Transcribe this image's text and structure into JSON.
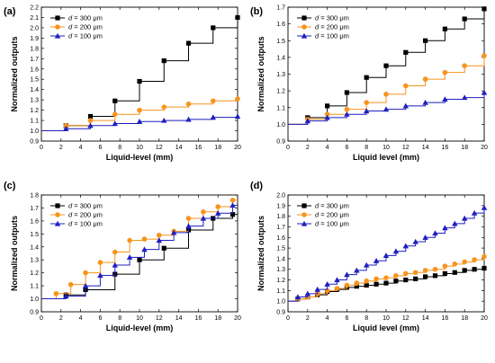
{
  "chart_data": [
    {
      "type": "line",
      "panel_label": "(a)",
      "xlabel": "Liquid-level (mm)",
      "ylabel": "Normalized outputs",
      "xlim": [
        0,
        20
      ],
      "ylim": [
        0.9,
        2.2
      ],
      "xticks": [
        0,
        2,
        4,
        6,
        8,
        10,
        12,
        14,
        16,
        18,
        20
      ],
      "yticks": [
        0.9,
        1.0,
        1.1,
        1.2,
        1.3,
        1.4,
        1.5,
        1.6,
        1.7,
        1.8,
        1.9,
        2.0,
        2.1,
        2.2
      ],
      "legend_position": "top-left",
      "series": [
        {
          "name": "d = 300 μm",
          "color": "#000000",
          "marker": "square",
          "x": [
            0,
            2.5,
            5,
            7.5,
            10,
            12.5,
            15,
            17.5,
            20
          ],
          "y": [
            1.0,
            1.05,
            1.14,
            1.29,
            1.48,
            1.68,
            1.85,
            2.0,
            2.1
          ]
        },
        {
          "name": "d = 200 μm",
          "color": "#f7941d",
          "marker": "circle",
          "x": [
            0,
            2.5,
            5,
            7.5,
            10,
            12.5,
            15,
            17.5,
            20
          ],
          "y": [
            1.0,
            1.05,
            1.1,
            1.16,
            1.2,
            1.23,
            1.26,
            1.29,
            1.31
          ]
        },
        {
          "name": "d = 100 μm",
          "color": "#1f1fbf",
          "marker": "triangle",
          "x": [
            0,
            2.5,
            5,
            7.5,
            10,
            12.5,
            15,
            17.5,
            20
          ],
          "y": [
            1.0,
            1.02,
            1.05,
            1.07,
            1.09,
            1.1,
            1.11,
            1.13,
            1.14
          ]
        }
      ]
    },
    {
      "type": "line",
      "panel_label": "(b)",
      "xlabel": "Liquid level (mm)",
      "ylabel": "Normalized outputs",
      "xlim": [
        0,
        20
      ],
      "ylim": [
        0.9,
        1.7
      ],
      "xticks": [
        0,
        2,
        4,
        6,
        8,
        10,
        12,
        14,
        16,
        18,
        20
      ],
      "yticks": [
        0.9,
        1.0,
        1.1,
        1.2,
        1.3,
        1.4,
        1.5,
        1.6,
        1.7
      ],
      "legend_position": "top-left",
      "series": [
        {
          "name": "d = 300 μm",
          "color": "#000000",
          "marker": "square",
          "x": [
            0,
            2,
            4,
            6,
            8,
            10,
            12,
            14,
            16,
            18,
            20
          ],
          "y": [
            1.0,
            1.04,
            1.11,
            1.19,
            1.28,
            1.35,
            1.43,
            1.5,
            1.57,
            1.63,
            1.69
          ]
        },
        {
          "name": "d = 200 μm",
          "color": "#f7941d",
          "marker": "circle",
          "x": [
            0,
            2,
            4,
            6,
            8,
            10,
            12,
            14,
            16,
            18,
            20
          ],
          "y": [
            1.0,
            1.03,
            1.06,
            1.09,
            1.13,
            1.18,
            1.23,
            1.27,
            1.31,
            1.35,
            1.41
          ]
        },
        {
          "name": "d = 100 μm",
          "color": "#1f1fbf",
          "marker": "triangle",
          "x": [
            0,
            2,
            4,
            6,
            8,
            10,
            12,
            14,
            16,
            18,
            20
          ],
          "y": [
            1.0,
            1.02,
            1.04,
            1.06,
            1.08,
            1.09,
            1.11,
            1.13,
            1.15,
            1.16,
            1.19
          ]
        }
      ]
    },
    {
      "type": "line",
      "panel_label": "(c)",
      "xlabel": "Liquid-level (mm)",
      "ylabel": "Normalized outputs",
      "xlim": [
        0,
        20
      ],
      "ylim": [
        0.9,
        1.8
      ],
      "xticks": [
        0,
        2,
        4,
        6,
        8,
        10,
        12,
        14,
        16,
        18,
        20
      ],
      "yticks": [
        0.9,
        1.0,
        1.1,
        1.2,
        1.3,
        1.4,
        1.5,
        1.6,
        1.7,
        1.8
      ],
      "legend_position": "top-left",
      "series": [
        {
          "name": "d = 300 μm",
          "color": "#000000",
          "marker": "square",
          "x": [
            0,
            2.5,
            4.5,
            7.5,
            10,
            12.5,
            15,
            17.5,
            19.5
          ],
          "y": [
            1.0,
            1.03,
            1.07,
            1.19,
            1.3,
            1.39,
            1.53,
            1.62,
            1.65
          ]
        },
        {
          "name": "d = 200 μm",
          "color": "#f7941d",
          "marker": "circle",
          "x": [
            0,
            1.5,
            3,
            4.5,
            6,
            7.5,
            9,
            10.5,
            12,
            13.5,
            15,
            16.5,
            18,
            19.5
          ],
          "y": [
            1.0,
            1.04,
            1.11,
            1.2,
            1.28,
            1.36,
            1.45,
            1.46,
            1.49,
            1.52,
            1.62,
            1.67,
            1.71,
            1.76
          ]
        },
        {
          "name": "d = 100 μm",
          "color": "#1f1fbf",
          "marker": "triangle",
          "x": [
            0,
            2.5,
            4.5,
            6,
            7.5,
            9,
            10.5,
            12,
            13.5,
            15,
            16.5,
            18,
            19.5
          ],
          "y": [
            1.0,
            1.02,
            1.1,
            1.18,
            1.26,
            1.32,
            1.38,
            1.45,
            1.51,
            1.56,
            1.62,
            1.66,
            1.72
          ]
        }
      ]
    },
    {
      "type": "line",
      "panel_label": "(d)",
      "xlabel": "Liquid level (mm)",
      "ylabel": "Normalized outputs",
      "xlim": [
        0,
        20
      ],
      "ylim": [
        0.9,
        2.0
      ],
      "xticks": [
        0,
        2,
        4,
        6,
        8,
        10,
        12,
        14,
        16,
        18,
        20
      ],
      "yticks": [
        0.9,
        1.0,
        1.1,
        1.2,
        1.3,
        1.4,
        1.5,
        1.6,
        1.7,
        1.8,
        1.9,
        2.0
      ],
      "legend_position": "top-left",
      "series": [
        {
          "name": "d = 300 μm",
          "color": "#000000",
          "marker": "square",
          "x": [
            0,
            1,
            2,
            3,
            4,
            5,
            6,
            7,
            8,
            9,
            10,
            11,
            12,
            13,
            14,
            15,
            16,
            17,
            18,
            19,
            20
          ],
          "y": [
            1.0,
            1.02,
            1.04,
            1.06,
            1.09,
            1.11,
            1.13,
            1.14,
            1.15,
            1.16,
            1.17,
            1.19,
            1.2,
            1.21,
            1.23,
            1.24,
            1.26,
            1.27,
            1.29,
            1.3,
            1.31
          ]
        },
        {
          "name": "d = 200 μm",
          "color": "#f7941d",
          "marker": "circle",
          "x": [
            0,
            1,
            2,
            3,
            4,
            5,
            6,
            7,
            8,
            9,
            10,
            11,
            12,
            13,
            14,
            15,
            16,
            17,
            18,
            19,
            20
          ],
          "y": [
            1.0,
            1.02,
            1.04,
            1.07,
            1.1,
            1.12,
            1.15,
            1.17,
            1.19,
            1.21,
            1.22,
            1.24,
            1.26,
            1.27,
            1.29,
            1.3,
            1.33,
            1.35,
            1.37,
            1.39,
            1.42
          ]
        },
        {
          "name": "d = 100 μm",
          "color": "#1f1fbf",
          "marker": "triangle",
          "x": [
            0,
            1,
            2,
            3,
            4,
            5,
            6,
            7,
            8,
            9,
            10,
            11,
            12,
            13,
            14,
            15,
            16,
            17,
            18,
            19,
            20
          ],
          "y": [
            1.0,
            1.04,
            1.07,
            1.11,
            1.16,
            1.2,
            1.25,
            1.29,
            1.34,
            1.38,
            1.43,
            1.47,
            1.52,
            1.56,
            1.6,
            1.64,
            1.69,
            1.73,
            1.78,
            1.83,
            1.88
          ]
        }
      ]
    }
  ]
}
